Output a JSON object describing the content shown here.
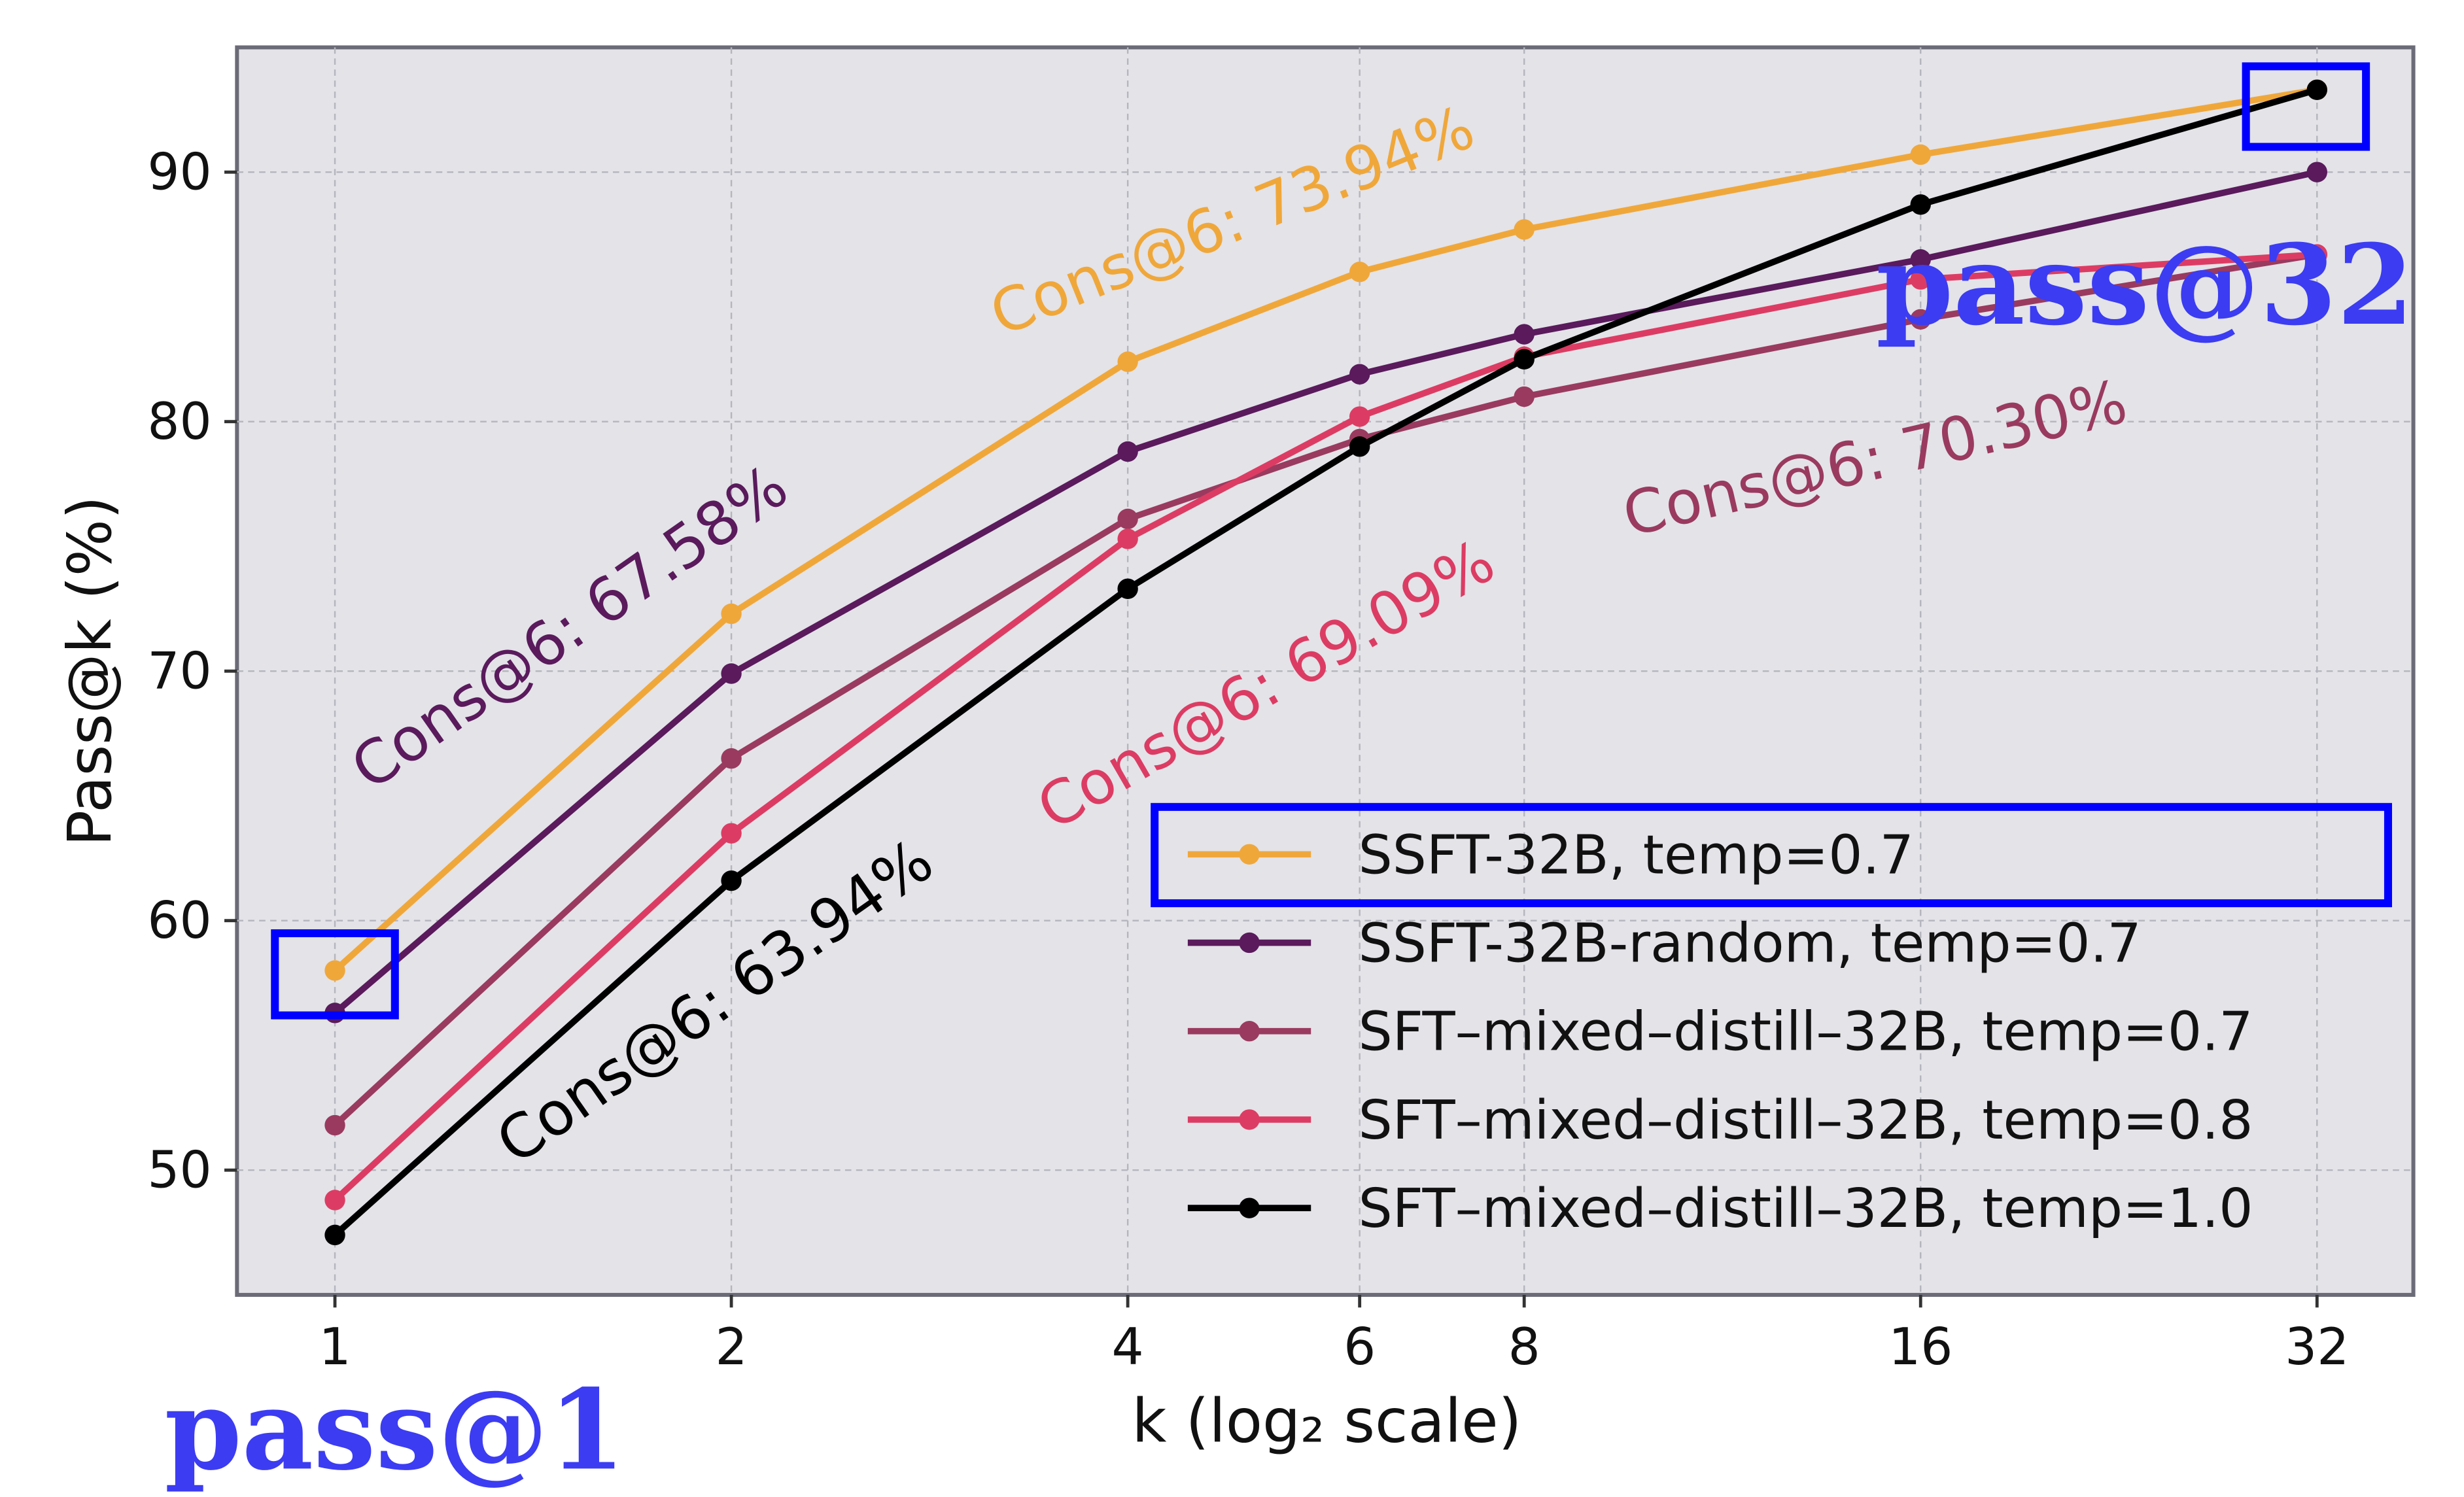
{
  "chart_data": {
    "type": "line",
    "title": "",
    "xlabel": "k (log₂ scale)",
    "ylabel": "Pass@k (%)",
    "x_scale": "log2",
    "x": [
      1,
      2,
      4,
      6,
      8,
      16,
      32
    ],
    "x_tick_labels": [
      "1",
      "2",
      "4",
      "6",
      "8",
      "16",
      "32"
    ],
    "y_ticks": [
      50,
      60,
      70,
      80,
      90
    ],
    "ylim": [
      45,
      95
    ],
    "grid": true,
    "legend_position": "bottom-right",
    "series": [
      {
        "name": "SSFT-32B, temp=0.7",
        "color": "#f0a73a",
        "values": [
          58.0,
          72.3,
          82.4,
          86.0,
          87.7,
          90.7,
          93.3
        ]
      },
      {
        "name": "SSFT-32B-random, temp=0.7",
        "color": "#5a1a5c",
        "values": [
          56.3,
          69.9,
          78.8,
          81.9,
          83.5,
          86.5,
          90.0
        ]
      },
      {
        "name": "SFT–mixed–distill–32B, temp=0.7",
        "color": "#9a3a5f",
        "values": [
          51.8,
          66.5,
          76.1,
          79.3,
          81.0,
          84.1,
          86.7
        ]
      },
      {
        "name": "SFT–mixed–distill–32B, temp=0.8",
        "color": "#dc3c63",
        "values": [
          48.8,
          63.5,
          75.3,
          80.2,
          82.6,
          85.7,
          86.7
        ]
      },
      {
        "name": "SFT–mixed–distill–32B, temp=1.0",
        "color": "#000000",
        "values": [
          47.4,
          61.6,
          73.3,
          79.0,
          82.5,
          88.7,
          93.3
        ]
      }
    ],
    "annotations": [
      {
        "text": "Cons@6: 73.94%",
        "color": "#f0a73a"
      },
      {
        "text": "Cons@6: 67.58%",
        "color": "#5a1a5c"
      },
      {
        "text": "Cons@6: 70.30%",
        "color": "#9a3a5f"
      },
      {
        "text": "Cons@6: 69.09%",
        "color": "#dc3c63"
      },
      {
        "text": "Cons@6: 63.94%",
        "color": "#000000"
      }
    ],
    "highlights": {
      "color": "#0000ff",
      "label_color": "#3c3cf2",
      "pass1_label": "pass@1",
      "pass32_label": "pass@32"
    }
  }
}
